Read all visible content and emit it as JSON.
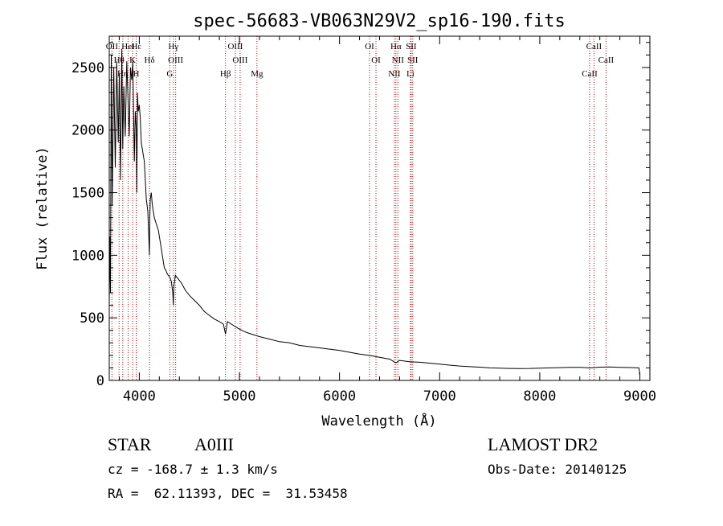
{
  "chart_data": {
    "type": "line",
    "title": "spec-56683-VB063N29V2_sp16-190.fits",
    "xlabel": "Wavelength (Å)",
    "ylabel": "Flux (relative)",
    "xlim": [
      3700,
      9100
    ],
    "ylim": [
      0,
      2750
    ],
    "xticks": [
      4000,
      5000,
      6000,
      7000,
      8000,
      9000
    ],
    "yticks": [
      0,
      500,
      1000,
      1500,
      2000,
      2500
    ],
    "grid": false,
    "series": [
      {
        "color": "#000000",
        "x": [
          3700,
          3705,
          3712,
          3720,
          3730,
          3745,
          3760,
          3775,
          3790,
          3800,
          3812,
          3825,
          3835,
          3845,
          3860,
          3875,
          3885,
          3900,
          3912,
          3925,
          3935,
          3950,
          3960,
          3970,
          3975,
          3982,
          3990,
          4000,
          4010,
          4020,
          4030,
          4040,
          4050,
          4060,
          4070,
          4085,
          4095,
          4101,
          4105,
          4110,
          4120,
          4130,
          4150,
          4170,
          4190,
          4210,
          4230,
          4250,
          4265,
          4280,
          4300,
          4320,
          4335,
          4340,
          4345,
          4360,
          4380,
          4420,
          4460,
          4500,
          4550,
          4600,
          4650,
          4700,
          4750,
          4800,
          4840,
          4861,
          4880,
          4920,
          4960,
          5000,
          5050,
          5100,
          5200,
          5300,
          5400,
          5500,
          5600,
          5700,
          5800,
          5900,
          6000,
          6100,
          6200,
          6300,
          6400,
          6500,
          6563,
          6600,
          6700,
          6800,
          6900,
          7000,
          7100,
          7200,
          7300,
          7400,
          7500,
          7600,
          7700,
          7800,
          7900,
          8000,
          8100,
          8200,
          8300,
          8400,
          8500,
          8600,
          8700,
          8800,
          8900,
          8990,
          9000
        ],
        "y": [
          600,
          1150,
          700,
          2600,
          1400,
          2500,
          1700,
          2550,
          1900,
          2450,
          1600,
          2650,
          1850,
          2350,
          1950,
          2550,
          2300,
          1950,
          2500,
          2400,
          2550,
          1750,
          2150,
          2000,
          1500,
          2300,
          2150,
          2200,
          2100,
          1900,
          1850,
          1800,
          1750,
          1600,
          1450,
          1350,
          1150,
          1000,
          1300,
          1450,
          1500,
          1400,
          1300,
          1250,
          1200,
          1100,
          1000,
          900,
          880,
          850,
          830,
          790,
          700,
          600,
          750,
          840,
          820,
          780,
          720,
          680,
          640,
          600,
          550,
          520,
          490,
          470,
          450,
          370,
          470,
          450,
          430,
          410,
          390,
          375,
          350,
          330,
          310,
          300,
          280,
          270,
          260,
          250,
          240,
          225,
          210,
          200,
          185,
          170,
          140,
          160,
          150,
          145,
          138,
          130,
          122,
          115,
          110,
          106,
          100,
          98,
          96,
          95,
          96,
          98,
          100,
          102,
          104,
          105,
          100,
          106,
          108,
          105,
          103,
          100,
          40
        ]
      }
    ],
    "lines": [
      {
        "name": "OII",
        "x": 3727
      },
      {
        "name": "Hθ",
        "x": 3798
      },
      {
        "name": "Hη",
        "x": 3835
      },
      {
        "name": "HeI",
        "x": 3889
      },
      {
        "name": "K",
        "x": 3934
      },
      {
        "name": "H",
        "x": 3969
      },
      {
        "name": "Hε",
        "x": 3970
      },
      {
        "name": "Hδ",
        "x": 4102
      },
      {
        "name": "G",
        "x": 4305
      },
      {
        "name": "Hγ",
        "x": 4341
      },
      {
        "name": "OIII",
        "x": 4363
      },
      {
        "name": "Hβ",
        "x": 4861
      },
      {
        "name": "OIII",
        "x": 4959
      },
      {
        "name": "OIII",
        "x": 5007
      },
      {
        "name": "Mg",
        "x": 5175
      },
      {
        "name": "OI",
        "x": 6300
      },
      {
        "name": "OI",
        "x": 6364
      },
      {
        "name": "NII",
        "x": 6548
      },
      {
        "name": "Hα",
        "x": 6563
      },
      {
        "name": "NII",
        "x": 6583
      },
      {
        "name": "Li",
        "x": 6708
      },
      {
        "name": "SII",
        "x": 6716
      },
      {
        "name": "SII",
        "x": 6731
      },
      {
        "name": "CaII",
        "x": 8498
      },
      {
        "name": "CaII",
        "x": 8542
      },
      {
        "name": "CaII",
        "x": 8662
      }
    ]
  },
  "info": {
    "class": "STAR",
    "subclass": "A0III",
    "survey": "LAMOST DR2",
    "cz": "cz = -168.7 ± 1.3 km/s",
    "obs_date": "Obs-Date: 20140125",
    "radec": "RA =  62.11393, DEC =  31.53458"
  }
}
